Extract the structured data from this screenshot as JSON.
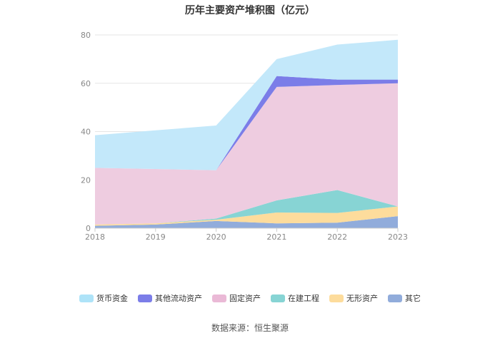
{
  "chart_data": {
    "type": "area",
    "title": "历年主要资产堆积图（亿元）",
    "source": "数据来源：恒生聚源",
    "x": [
      "2018",
      "2019",
      "2020",
      "2021",
      "2022",
      "2023"
    ],
    "ylim": [
      0,
      80
    ],
    "yticks": [
      0,
      20,
      40,
      60,
      80
    ],
    "grid": true,
    "legend_position": "bottom",
    "stacked": true,
    "series": [
      {
        "name": "其它",
        "color": "#91acdb",
        "values": [
          1.0,
          1.5,
          3.0,
          2.0,
          2.3,
          5.0
        ]
      },
      {
        "name": "无形资产",
        "color": "#fddc9c",
        "values": [
          0.5,
          0.5,
          0.5,
          4.5,
          4.0,
          4.0
        ]
      },
      {
        "name": "在建工程",
        "color": "#87d4d4",
        "values": [
          0.0,
          0.0,
          0.5,
          5.0,
          9.5,
          0.0
        ]
      },
      {
        "name": "固定资产",
        "color": "#eecce0",
        "values": [
          23.5,
          22.5,
          20.0,
          47.0,
          43.5,
          51.0
        ]
      },
      {
        "name": "其他流动资产",
        "color": "#7b7de8",
        "values": [
          0.0,
          0.0,
          0.0,
          4.5,
          2.2,
          1.5
        ]
      },
      {
        "name": "货币资金",
        "color": "#c3e8fa",
        "values": [
          13.5,
          16.0,
          18.5,
          7.0,
          14.5,
          16.5
        ]
      }
    ],
    "legend_colors": [
      "#aee3f8",
      "#7b7de8",
      "#eab9d6",
      "#87d4d4",
      "#fddc9c",
      "#91acdb"
    ]
  }
}
